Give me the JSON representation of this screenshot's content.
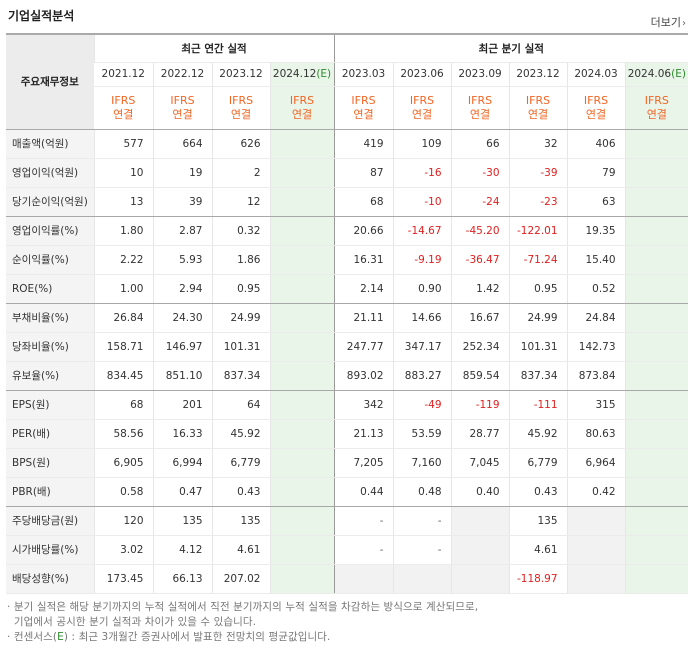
{
  "header": {
    "title": "기업실적분석",
    "more_label": "더보기"
  },
  "table": {
    "row_header": "주요재무정보",
    "annual_group": "최근 연간 실적",
    "quarter_group": "최근 분기 실적",
    "annual_periods": [
      "2021.12",
      "2022.12",
      "2023.12",
      "2024.12"
    ],
    "annual_est_suffix": "(E)",
    "quarter_periods": [
      "2023.03",
      "2023.06",
      "2023.09",
      "2023.12",
      "2024.03",
      "2024.06"
    ],
    "quarter_est_suffix": "(E)",
    "basis_top": "IFRS",
    "basis_bottom": "연결",
    "rows": [
      {
        "label": "매출액(억원)",
        "annual": [
          "577",
          "664",
          "626",
          ""
        ],
        "quarter": [
          "419",
          "109",
          "66",
          "32",
          "406",
          ""
        ]
      },
      {
        "label": "영업이익(억원)",
        "annual": [
          "10",
          "19",
          "2",
          ""
        ],
        "quarter": [
          "87",
          "-16",
          "-30",
          "-39",
          "79",
          ""
        ]
      },
      {
        "label": "당기순이익(억원)",
        "annual": [
          "13",
          "39",
          "12",
          ""
        ],
        "quarter": [
          "68",
          "-10",
          "-24",
          "-23",
          "63",
          ""
        ]
      },
      {
        "label": "영업이익률(%)",
        "annual": [
          "1.80",
          "2.87",
          "0.32",
          ""
        ],
        "quarter": [
          "20.66",
          "-14.67",
          "-45.20",
          "-122.01",
          "19.35",
          ""
        ]
      },
      {
        "label": "순이익률(%)",
        "annual": [
          "2.22",
          "5.93",
          "1.86",
          ""
        ],
        "quarter": [
          "16.31",
          "-9.19",
          "-36.47",
          "-71.24",
          "15.40",
          ""
        ]
      },
      {
        "label": "ROE(%)",
        "annual": [
          "1.00",
          "2.94",
          "0.95",
          ""
        ],
        "quarter": [
          "2.14",
          "0.90",
          "1.42",
          "0.95",
          "0.52",
          ""
        ]
      },
      {
        "label": "부채비율(%)",
        "annual": [
          "26.84",
          "24.30",
          "24.99",
          ""
        ],
        "quarter": [
          "21.11",
          "14.66",
          "16.67",
          "24.99",
          "24.84",
          ""
        ]
      },
      {
        "label": "당좌비율(%)",
        "annual": [
          "158.71",
          "146.97",
          "101.31",
          ""
        ],
        "quarter": [
          "247.77",
          "347.17",
          "252.34",
          "101.31",
          "142.73",
          ""
        ]
      },
      {
        "label": "유보율(%)",
        "annual": [
          "834.45",
          "851.10",
          "837.34",
          ""
        ],
        "quarter": [
          "893.02",
          "883.27",
          "859.54",
          "837.34",
          "873.84",
          ""
        ]
      },
      {
        "label": "EPS(원)",
        "annual": [
          "68",
          "201",
          "64",
          ""
        ],
        "quarter": [
          "342",
          "-49",
          "-119",
          "-111",
          "315",
          ""
        ]
      },
      {
        "label": "PER(배)",
        "annual": [
          "58.56",
          "16.33",
          "45.92",
          ""
        ],
        "quarter": [
          "21.13",
          "53.59",
          "28.77",
          "45.92",
          "80.63",
          ""
        ]
      },
      {
        "label": "BPS(원)",
        "annual": [
          "6,905",
          "6,994",
          "6,779",
          ""
        ],
        "quarter": [
          "7,205",
          "7,160",
          "7,045",
          "6,779",
          "6,964",
          ""
        ]
      },
      {
        "label": "PBR(배)",
        "annual": [
          "0.58",
          "0.47",
          "0.43",
          ""
        ],
        "quarter": [
          "0.44",
          "0.48",
          "0.40",
          "0.43",
          "0.42",
          ""
        ]
      },
      {
        "label": "주당배당금(원)",
        "annual": [
          "120",
          "135",
          "135",
          ""
        ],
        "quarter": [
          "-",
          "-",
          "",
          "135",
          "",
          ""
        ]
      },
      {
        "label": "시가배당률(%)",
        "annual": [
          "3.02",
          "4.12",
          "4.61",
          ""
        ],
        "quarter": [
          "-",
          "-",
          "",
          "4.61",
          "",
          ""
        ]
      },
      {
        "label": "배당성향(%)",
        "annual": [
          "173.45",
          "66.13",
          "207.02",
          ""
        ],
        "quarter": [
          "",
          "",
          "",
          "-118.97",
          "",
          ""
        ]
      }
    ]
  },
  "notes": {
    "line1": "· 분기 실적은 해당 분기까지의 누적 실적에서 직전 분기까지의 누적 실적을 차감하는 방식으로 계산되므로,",
    "line2": "  기업에서 공시한 분기 실적과 차이가 있을 수 있습니다.",
    "line3_prefix": "· 컨센서스(",
    "line3_e": "E",
    "line3_suffix": ") : 최근 3개월간 증권사에서 발표한 전망치의 평균값입니다."
  },
  "colors": {
    "basis": "#f26522",
    "negative": "#e02020",
    "estimate": "#2e8b2e",
    "estimate_bg": "#e9f5e9"
  }
}
